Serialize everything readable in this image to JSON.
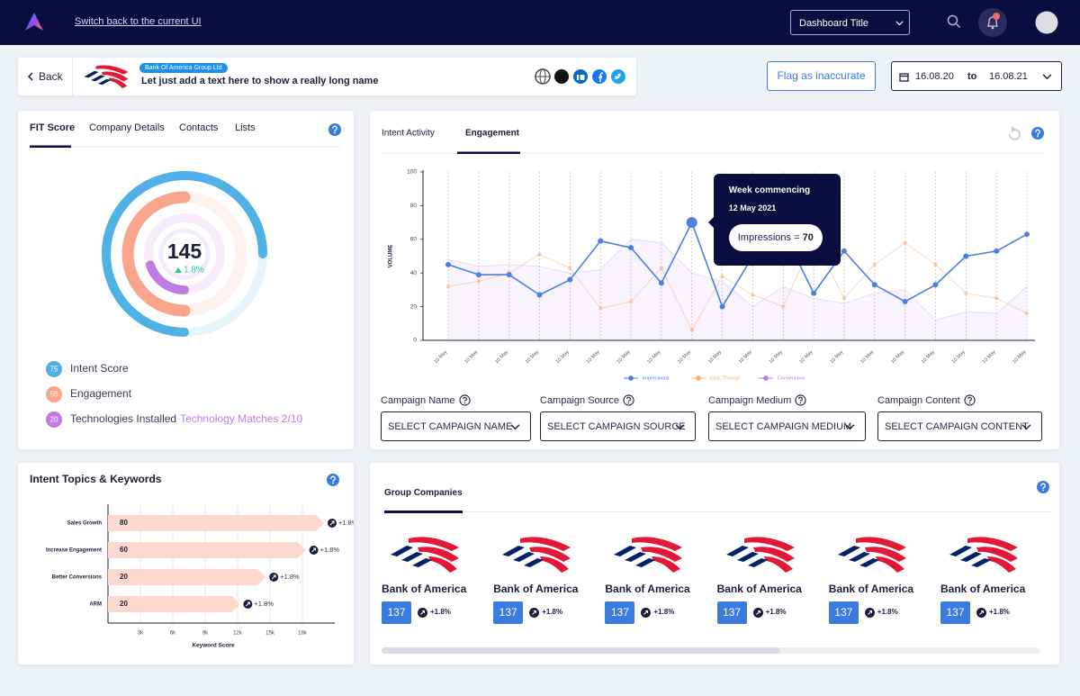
{
  "topbar": {
    "switch_link": "Switch back to the current UI",
    "dashboard": "Dashboard Title"
  },
  "company": {
    "back": "Back",
    "group_badge": "Bank Of America Group Ltd",
    "name": "Let just add a text here to show a really long name",
    "flag_button": "Flag as inaccurate",
    "date_from": "16.08.20",
    "date_sep": "to",
    "date_to": "16.08.21"
  },
  "fit": {
    "tabs": [
      "FIT Score",
      "Company Details",
      "Contacts",
      "Lists"
    ],
    "score": 145,
    "change": "1.8%",
    "items": [
      {
        "value": 75,
        "label": "Intent Score",
        "color": "#4fb1e6"
      },
      {
        "value": 50,
        "label": "Engagement",
        "color": "#f9a58c"
      },
      {
        "value": 20,
        "label": "Technologies Installed",
        "note": "Technology Matches 2/10",
        "color": "#c27be6"
      }
    ]
  },
  "engagement": {
    "tabs": [
      "Intent Activity",
      "Engagement"
    ],
    "chart_data": {
      "type": "line",
      "ylabel": "VOLUME",
      "categories": [
        "10 May",
        "10 May",
        "10 May",
        "10 May",
        "10 May",
        "10 May",
        "10 May",
        "10 May",
        "10 May",
        "10 May",
        "10 May",
        "10 May",
        "10 May",
        "10 May",
        "10 May",
        "10 May",
        "10 May",
        "10 May",
        "10 May",
        "10 May"
      ],
      "series": [
        {
          "name": "Impressions",
          "color": "#4a80e2",
          "values": [
            45,
            39,
            39,
            27,
            36,
            59,
            55,
            34,
            70,
            20,
            50,
            65,
            28,
            53,
            33,
            23,
            33,
            50,
            53,
            63
          ]
        },
        {
          "name": "Click Through",
          "color": "#f5b07a",
          "values": [
            32,
            35,
            40,
            51,
            43,
            19,
            23,
            43,
            6,
            38,
            27,
            20,
            60,
            25,
            45,
            58,
            45,
            28,
            25,
            16
          ]
        },
        {
          "name": "Conversions",
          "color": "#b77ce8",
          "values": [
            48,
            44,
            45,
            44,
            40,
            42,
            60,
            58,
            40,
            35,
            20,
            32,
            25,
            22,
            28,
            30,
            12,
            17,
            16,
            32
          ]
        }
      ],
      "ylim": [
        0,
        100
      ],
      "yticks": [
        0,
        20,
        40,
        60,
        80,
        100
      ],
      "grid": false
    },
    "tooltip": {
      "title": "Week commencing",
      "date": "12 May 2021",
      "label": "Impressions ="
    },
    "filters": [
      {
        "label": "Campaign Name",
        "placeholder": "SELECT CAMPAIGN NAME"
      },
      {
        "label": "Campaign Source",
        "placeholder": "SELECT CAMPAIGN SOURCE"
      },
      {
        "label": "Campaign Medium",
        "placeholder": "SELECT CAMPAIGN MEDIUM"
      },
      {
        "label": "Campaign Content",
        "placeholder": "SELECT CAMPAIGN CONTENT"
      }
    ]
  },
  "intent": {
    "title": "Intent Topics & Keywords",
    "chart_data": {
      "type": "bar",
      "orientation": "horizontal",
      "categories": [
        "Sales Growth",
        "Increase Engagement",
        "Better Conversions",
        "ARM"
      ],
      "values": [
        20000,
        18300,
        14600,
        12200
      ],
      "scores": [
        80,
        60,
        20,
        20
      ],
      "changes": [
        "+1.8%",
        "+1.8%",
        "+1.8%",
        "+1.8%"
      ],
      "color": "#fcd8ce",
      "xlim": [
        0,
        21000
      ],
      "xticks": [
        {
          "value": 3000,
          "label": "3k"
        },
        {
          "value": 6000,
          "label": "6k"
        },
        {
          "value": 9000,
          "label": "9k"
        },
        {
          "value": 12000,
          "label": "12k"
        },
        {
          "value": 15000,
          "label": "15k"
        },
        {
          "value": 18000,
          "label": "18k"
        }
      ],
      "xlabel": "Keyword Score",
      "grid": true
    }
  },
  "group": {
    "title": "Group Companies",
    "companies": [
      {
        "name": "Bank of America",
        "score": 137,
        "change": "+1.8%"
      },
      {
        "name": "Bank of America",
        "score": 137,
        "change": "+1.8%"
      },
      {
        "name": "Bank of America",
        "score": 137,
        "change": "+1.8%"
      },
      {
        "name": "Bank of America",
        "score": 137,
        "change": "+1.8%"
      },
      {
        "name": "Bank of America",
        "score": 137,
        "change": "+1.8%"
      },
      {
        "name": "Bank of America",
        "score": 137,
        "change": "+1.8%"
      }
    ]
  }
}
